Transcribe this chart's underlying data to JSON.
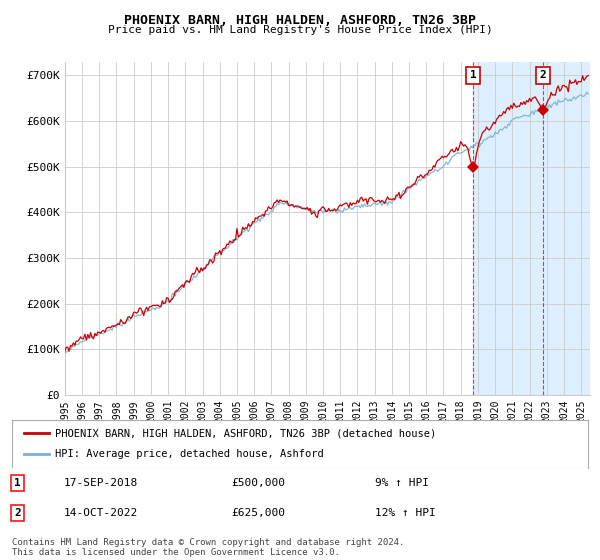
{
  "title": "PHOENIX BARN, HIGH HALDEN, ASHFORD, TN26 3BP",
  "subtitle": "Price paid vs. HM Land Registry's House Price Index (HPI)",
  "background_color": "#ffffff",
  "plot_bg_color": "#ffffff",
  "grid_color": "#cccccc",
  "ylabel_ticks": [
    "£0",
    "£100K",
    "£200K",
    "£300K",
    "£400K",
    "£500K",
    "£600K",
    "£700K"
  ],
  "ytick_vals": [
    0,
    100000,
    200000,
    300000,
    400000,
    500000,
    600000,
    700000
  ],
  "ylim": [
    0,
    730000
  ],
  "xlim_start": 1995.0,
  "xlim_end": 2025.5,
  "transaction1_date": 2018.72,
  "transaction1_price": 500000,
  "transaction1_label": "1",
  "transaction1_text": "17-SEP-2018",
  "transaction1_pct": "9% ↑ HPI",
  "transaction2_date": 2022.79,
  "transaction2_price": 625000,
  "transaction2_label": "2",
  "transaction2_text": "14-OCT-2022",
  "transaction2_pct": "12% ↑ HPI",
  "red_line_color": "#cc0000",
  "blue_line_color": "#7ab0d4",
  "highlight_bg_color": "#ddeeff",
  "legend_red_label": "PHOENIX BARN, HIGH HALDEN, ASHFORD, TN26 3BP (detached house)",
  "legend_blue_label": "HPI: Average price, detached house, Ashford",
  "footer_text": "Contains HM Land Registry data © Crown copyright and database right 2024.\nThis data is licensed under the Open Government Licence v3.0.",
  "xtick_years": [
    1995,
    1996,
    1997,
    1998,
    1999,
    2000,
    2001,
    2002,
    2003,
    2004,
    2005,
    2006,
    2007,
    2008,
    2009,
    2010,
    2011,
    2012,
    2013,
    2014,
    2015,
    2016,
    2017,
    2018,
    2019,
    2020,
    2021,
    2022,
    2023,
    2024,
    2025
  ]
}
